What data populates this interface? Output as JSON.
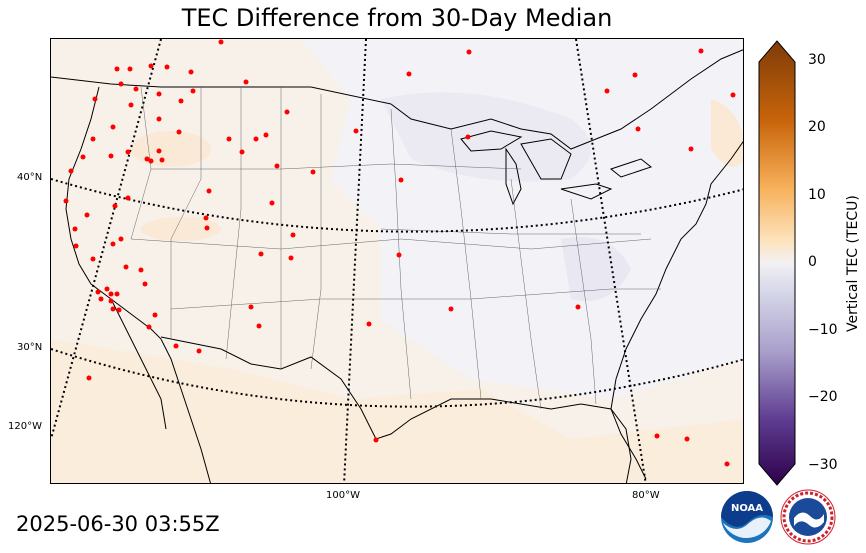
{
  "title": "TEC Difference from 30-Day Median",
  "timestamp": "2025-06-30 03:55Z",
  "colorbar": {
    "label": "Vertical TEC (TECU)",
    "ticks": [
      "30",
      "20",
      "10",
      "0",
      "−10",
      "−20",
      "−30"
    ],
    "min": -30,
    "max": 30
  },
  "latitude_labels": [
    "40°N",
    "30°N"
  ],
  "longitude_labels": [
    "120°W",
    "100°W",
    "80°W"
  ],
  "colors": {
    "positive": "#f3a33a",
    "negative": "#6a4a9c",
    "neutral": "#f2f2f4",
    "station": "#ff0000"
  },
  "logos": [
    "noaa-logo",
    "national-weather-service-logo"
  ]
}
